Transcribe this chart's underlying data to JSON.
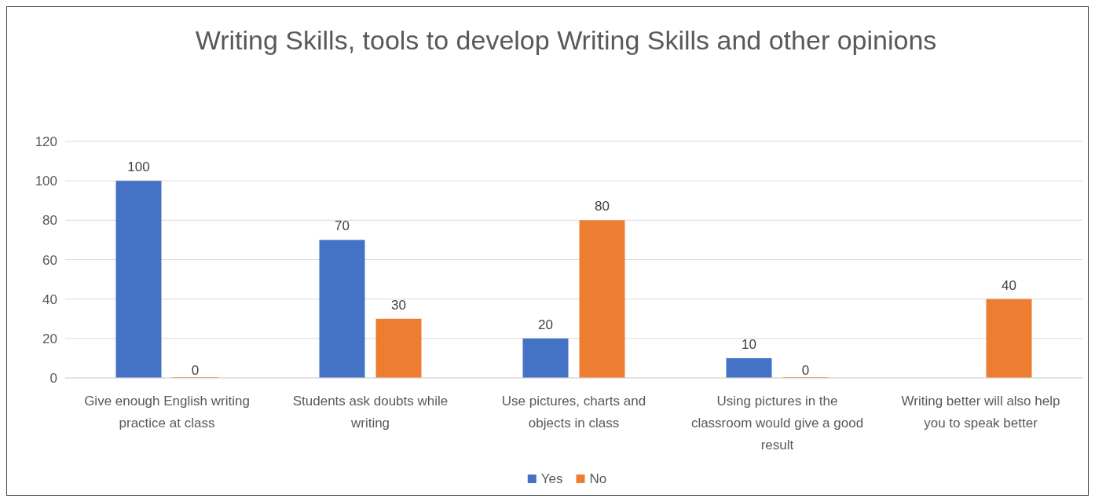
{
  "chart_data": {
    "type": "bar",
    "title": "Writing Skills, tools to develop Writing Skills and other opinions",
    "categories": [
      "Give enough English writing practice at class",
      "Students ask doubts while writing",
      "Use pictures, charts and objects in class",
      "Using pictures in the classroom would give a good result",
      "Writing better will also help you to speak better"
    ],
    "series": [
      {
        "name": "Yes",
        "color": "#4472c4",
        "values": [
          100,
          70,
          20,
          10,
          null
        ]
      },
      {
        "name": "No",
        "color": "#ed7d31",
        "values": [
          0,
          30,
          80,
          0,
          40
        ]
      }
    ],
    "ylim": [
      0,
      120
    ],
    "yticks": [
      0,
      20,
      40,
      60,
      80,
      100,
      120
    ],
    "grid": "y",
    "legend": "bottom",
    "data_labels": true
  }
}
